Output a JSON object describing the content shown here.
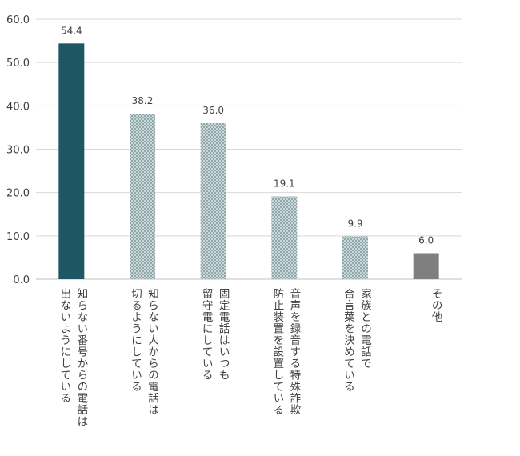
{
  "chart_data": {
    "type": "bar",
    "categories": [
      "知らない番号からの電話は\n出ないようにしている",
      "知らない人からの電話は\n切るようにしている",
      "固定電話はいつも\n留守電にしている",
      "音声を録音する特殊詐欺\n防止装置を設置している",
      "家族との電話で\n合言葉を決めている",
      "その他"
    ],
    "values": [
      54.4,
      38.2,
      36.0,
      19.1,
      9.9,
      6.0
    ],
    "value_labels": [
      "54.4",
      "38.2",
      "36.0",
      "19.1",
      "9.9",
      "6.0"
    ],
    "y_ticks": [
      "0.0",
      "10.0",
      "20.0",
      "30.0",
      "40.0",
      "50.0",
      "60.0"
    ],
    "ylim": [
      0,
      60
    ],
    "grid": true,
    "legend": "none",
    "colors": {
      "highlight": "#1f5663",
      "pattern_light": "#c9d5d7",
      "pattern_dark": "#8fa9ad",
      "other": "#7f7f7f",
      "grid": "#d9d9d9"
    },
    "bar_styles": [
      "highlight",
      "pattern",
      "pattern",
      "pattern",
      "pattern",
      "other"
    ]
  }
}
